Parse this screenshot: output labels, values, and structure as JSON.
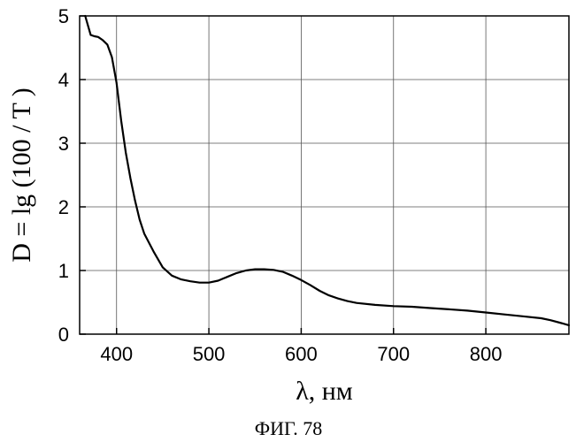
{
  "chart_data": {
    "type": "line",
    "title": "",
    "xlabel": "λ, нм",
    "ylabel": "D = lg (100 / T )",
    "caption": "ФИГ. 78",
    "xlim": [
      360,
      890
    ],
    "ylim": [
      0,
      5
    ],
    "x_ticks": [
      400,
      500,
      600,
      700,
      800
    ],
    "y_ticks": [
      0,
      1,
      2,
      3,
      4,
      5
    ],
    "grid": true,
    "legend": "none",
    "line_color": "#000000",
    "series": [
      {
        "x": [
          366,
          369,
          372,
          376,
          380,
          385,
          390,
          395,
          400,
          405,
          410,
          415,
          420,
          425,
          430,
          440,
          450,
          460,
          470,
          480,
          490,
          500,
          510,
          520,
          530,
          540,
          550,
          560,
          570,
          580,
          590,
          600,
          610,
          620,
          630,
          640,
          650,
          660,
          680,
          700,
          720,
          740,
          760,
          780,
          800,
          820,
          840,
          860,
          870,
          880,
          890
        ],
        "y": [
          5.0,
          4.85,
          4.7,
          4.68,
          4.67,
          4.62,
          4.55,
          4.35,
          3.95,
          3.35,
          2.85,
          2.45,
          2.1,
          1.8,
          1.58,
          1.3,
          1.05,
          0.92,
          0.86,
          0.83,
          0.81,
          0.81,
          0.84,
          0.9,
          0.96,
          1.0,
          1.02,
          1.02,
          1.01,
          0.98,
          0.92,
          0.85,
          0.77,
          0.68,
          0.61,
          0.56,
          0.52,
          0.49,
          0.46,
          0.44,
          0.43,
          0.41,
          0.39,
          0.37,
          0.34,
          0.31,
          0.28,
          0.25,
          0.22,
          0.18,
          0.14
        ]
      }
    ]
  }
}
